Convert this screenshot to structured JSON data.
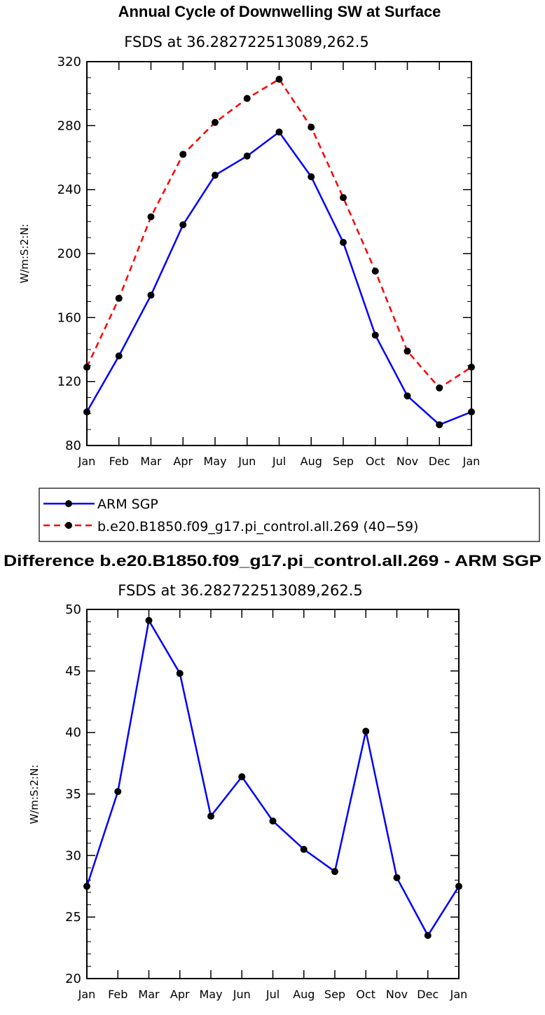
{
  "chart_data": [
    {
      "type": "line",
      "title": "Annual Cycle of Downwelling SW at Surface",
      "subtitle": "FSDS at 36.282722513089,262.5",
      "ylabel": "W/m:S:2:N:",
      "xlabel": "",
      "ylim": [
        80,
        320
      ],
      "yticks": [
        80,
        120,
        160,
        200,
        240,
        280,
        320
      ],
      "categories": [
        "Jan",
        "Feb",
        "Mar",
        "Apr",
        "May",
        "Jun",
        "Jul",
        "Aug",
        "Sep",
        "Oct",
        "Nov",
        "Dec",
        "Jan"
      ],
      "series": [
        {
          "name": "ARM SGP",
          "color": "#0000ff",
          "dash": "solid",
          "values": [
            101,
            136,
            174,
            218,
            249,
            261,
            276,
            248,
            207,
            149,
            111,
            93,
            101
          ]
        },
        {
          "name": "b.e20.B1850.f09_g17.pi_control.all.269 (40−59)",
          "color": "#ff0000",
          "dash": "dashed",
          "values": [
            129,
            172,
            223,
            262,
            282,
            297,
            309,
            279,
            235,
            189,
            139,
            116,
            129
          ]
        }
      ],
      "legend": "below"
    },
    {
      "type": "line",
      "title": "Difference b.e20.B1850.f09_g17.pi_control.all.269 - ARM SGP",
      "subtitle": "FSDS at 36.282722513089,262.5",
      "ylabel": "W/m:S:2:N:",
      "xlabel": "",
      "ylim": [
        20,
        50
      ],
      "yticks": [
        20,
        25,
        30,
        35,
        40,
        45,
        50
      ],
      "categories": [
        "Jan",
        "Feb",
        "Mar",
        "Apr",
        "May",
        "Jun",
        "Jul",
        "Aug",
        "Sep",
        "Oct",
        "Nov",
        "Dec",
        "Jan"
      ],
      "series": [
        {
          "name": "Difference",
          "color": "#0000ff",
          "dash": "solid",
          "values": [
            27.5,
            35.2,
            49.1,
            44.8,
            33.2,
            36.4,
            32.8,
            30.5,
            28.7,
            40.1,
            28.2,
            23.5,
            27.5
          ]
        }
      ]
    }
  ]
}
